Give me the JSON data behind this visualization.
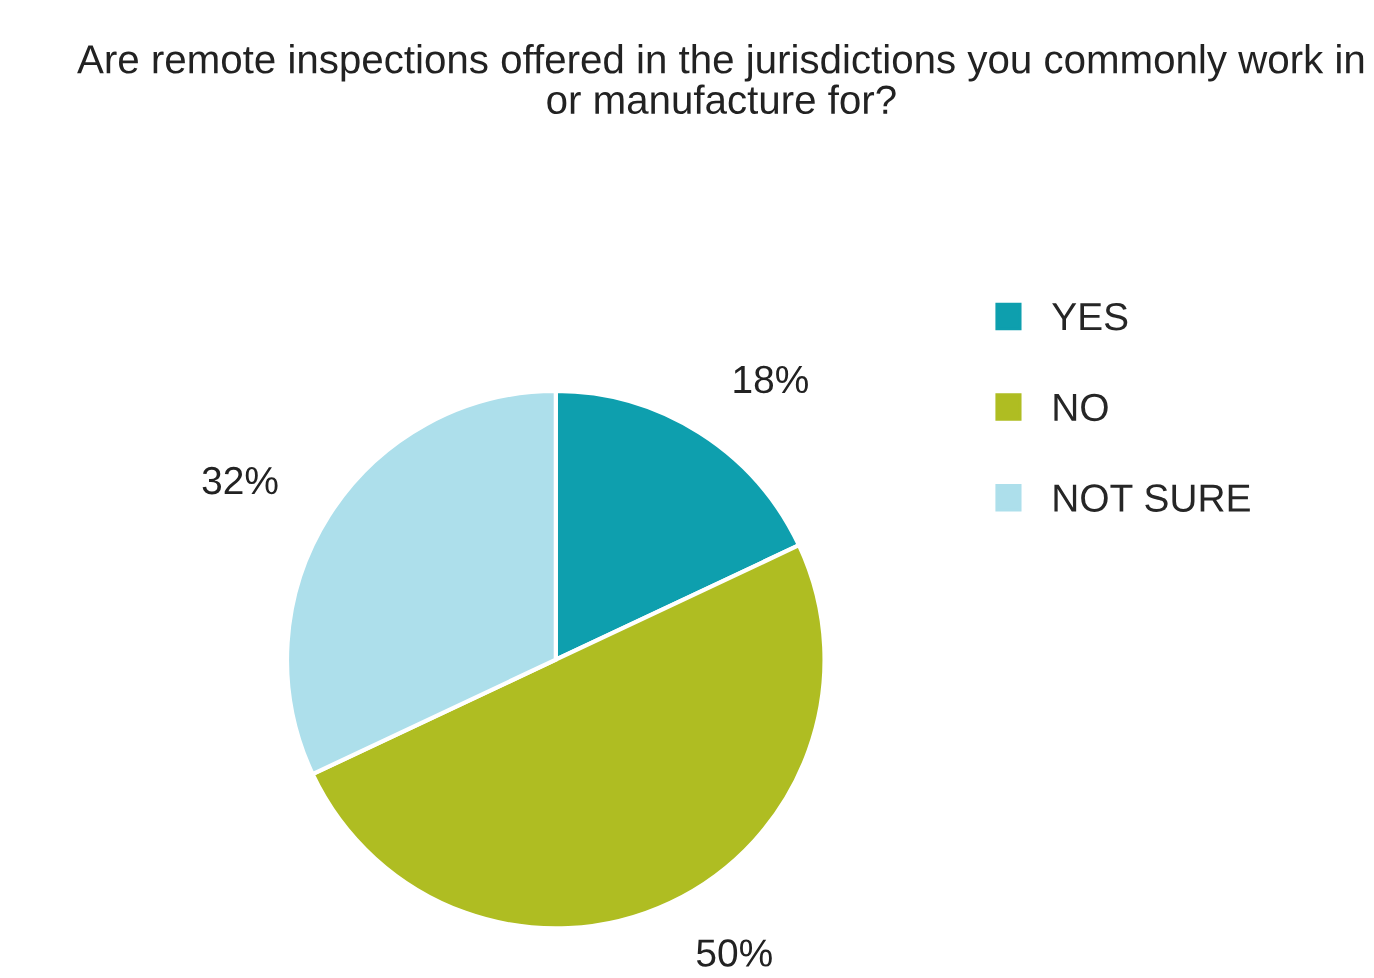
{
  "chart_data": {
    "type": "pie",
    "title": "Are remote inspections offered in the jurisdictions you commonly work in or manufacture for?",
    "categories": [
      "YES",
      "NO",
      "NOT SURE"
    ],
    "values": [
      18,
      50,
      32
    ],
    "colors": [
      "#0e9fae",
      "#afbd22",
      "#addfeb"
    ],
    "value_labels": [
      "18%",
      "50%",
      "32%"
    ],
    "legend": "right"
  }
}
